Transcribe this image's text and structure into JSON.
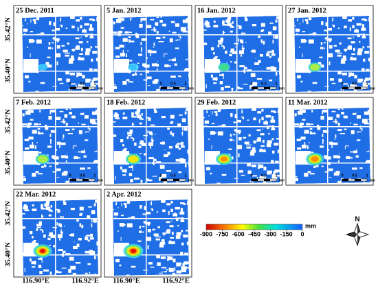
{
  "panels": [
    {
      "date": "25 Dec. 2011"
    },
    {
      "date": "5 Jan. 2012"
    },
    {
      "date": "16 Jan. 2012"
    },
    {
      "date": "27 Jan. 2012"
    },
    {
      "date": "7 Feb. 2012"
    },
    {
      "date": "18 Feb. 2012"
    },
    {
      "date": "29 Feb. 2012"
    },
    {
      "date": "11 Mar. 2012"
    },
    {
      "date": "22 Mar. 2012"
    },
    {
      "date": "2 Apr. 2012"
    }
  ],
  "axes": {
    "lat_labels": [
      "35.42°N",
      "35.40°N"
    ],
    "lon_labels": [
      "116.90°E",
      "116.92°E"
    ]
  },
  "scale_bar": {
    "labels": [
      "0",
      "0.5",
      "1"
    ],
    "unit": "km"
  },
  "colorbar": {
    "ticks": [
      -900,
      -750,
      -600,
      -450,
      -300,
      -150,
      0
    ],
    "range": [
      -900,
      0
    ],
    "unit": "mm"
  },
  "north_label": "N"
}
